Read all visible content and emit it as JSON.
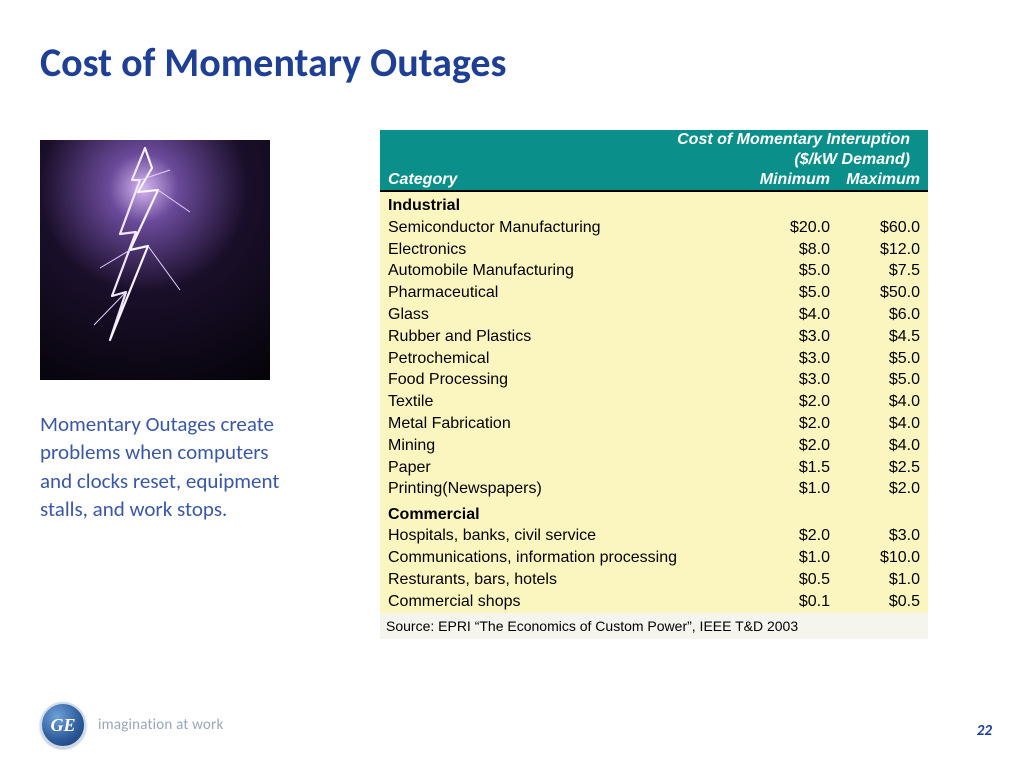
{
  "title": "Cost of Momentary Outages",
  "caption": "Momentary Outages create problems when computers and clocks reset, equipment stalls, and work stops.",
  "table": {
    "header_line1": "Cost of Momentary Interuption",
    "header_line2": "($/kW Demand)",
    "col_category": "Category",
    "col_min": "Minimum",
    "col_max": "Maximum",
    "header_bg": "#0b8f8a",
    "header_color": "#ffffff",
    "body_bg": "#fbf6c0",
    "font_size": 16,
    "sections": [
      {
        "label": "Industrial",
        "rows": [
          {
            "name": "Semiconductor Manufacturing",
            "min": "$20.0",
            "max": "$60.0"
          },
          {
            "name": "Electronics",
            "min": "$8.0",
            "max": "$12.0"
          },
          {
            "name": "Automobile Manufacturing",
            "min": "$5.0",
            "max": "$7.5"
          },
          {
            "name": "Pharmaceutical",
            "min": "$5.0",
            "max": "$50.0"
          },
          {
            "name": "Glass",
            "min": "$4.0",
            "max": "$6.0"
          },
          {
            "name": "Rubber and Plastics",
            "min": "$3.0",
            "max": "$4.5"
          },
          {
            "name": "Petrochemical",
            "min": "$3.0",
            "max": "$5.0"
          },
          {
            "name": "Food Processing",
            "min": "$3.0",
            "max": "$5.0"
          },
          {
            "name": "Textile",
            "min": "$2.0",
            "max": "$4.0"
          },
          {
            "name": "Metal Fabrication",
            "min": "$2.0",
            "max": "$4.0"
          },
          {
            "name": "Mining",
            "min": "$2.0",
            "max": "$4.0"
          },
          {
            "name": "Paper",
            "min": "$1.5",
            "max": "$2.5"
          },
          {
            "name": "Printing(Newspapers)",
            "min": "$1.0",
            "max": "$2.0"
          }
        ]
      },
      {
        "label": "Commercial",
        "rows": [
          {
            "name": "Hospitals, banks, civil service",
            "min": "$2.0",
            "max": "$3.0"
          },
          {
            "name": "Communications, information processing",
            "min": "$1.0",
            "max": "$10.0"
          },
          {
            "name": "Resturants, bars, hotels",
            "min": "$0.5",
            "max": "$1.0"
          },
          {
            "name": "Commercial shops",
            "min": "$0.1",
            "max": "$0.5"
          }
        ]
      }
    ],
    "source": "Source: EPRI “The Economics of Custom Power”, IEEE T&D  2003"
  },
  "footer": {
    "logo_text": "GE",
    "tagline": "imagination at work",
    "page_number": "22"
  },
  "colors": {
    "title": "#1f3f94",
    "caption": "#3a57a6",
    "page_num": "#1f3f94"
  }
}
